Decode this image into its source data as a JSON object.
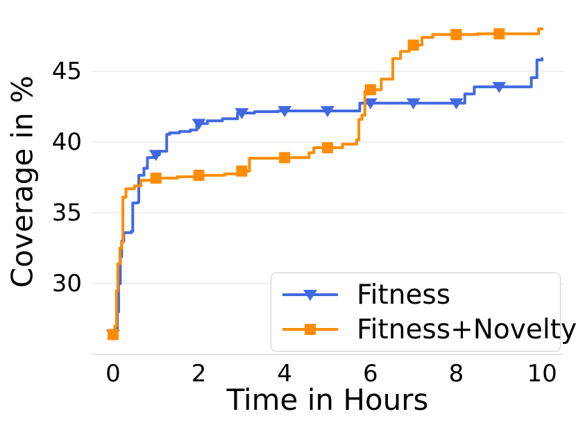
{
  "figure": {
    "background": "#ffffff",
    "grid_color": "#e7e7e7",
    "axis_line_color": "#dddddd",
    "text_color": "#000000"
  },
  "chart_data": {
    "type": "line",
    "title": "",
    "xlabel": "Time in Hours",
    "ylabel": "Coverage in %",
    "xlim": [
      -0.5,
      10.5
    ],
    "ylim": [
      25,
      49.5
    ],
    "xticks": [
      0,
      2,
      4,
      6,
      8,
      10
    ],
    "yticks": [
      30,
      35,
      40,
      45
    ],
    "grid": "horizontal",
    "legend_position": "lower right",
    "series": [
      {
        "name": "Fitness",
        "color": "#4169e1",
        "marker": "triangle-down",
        "line_style": "step-after",
        "marker_x": [
          0,
          1,
          2,
          3,
          4,
          5,
          6,
          7,
          8,
          9
        ],
        "points": [
          [
            0,
            26.4
          ],
          [
            0.05,
            26.8
          ],
          [
            0.1,
            28.0
          ],
          [
            0.13,
            30.0
          ],
          [
            0.17,
            31.9
          ],
          [
            0.2,
            33.0
          ],
          [
            0.25,
            33.6
          ],
          [
            0.43,
            33.7
          ],
          [
            0.46,
            35.7
          ],
          [
            0.58,
            35.75
          ],
          [
            0.6,
            37.65
          ],
          [
            0.72,
            38.15
          ],
          [
            0.8,
            38.9
          ],
          [
            0.95,
            39.1
          ],
          [
            1.08,
            39.35
          ],
          [
            1.25,
            40.55
          ],
          [
            1.32,
            40.65
          ],
          [
            1.55,
            40.75
          ],
          [
            1.8,
            40.85
          ],
          [
            1.95,
            41.3
          ],
          [
            2.2,
            41.5
          ],
          [
            2.55,
            41.65
          ],
          [
            2.9,
            42.05
          ],
          [
            3.3,
            42.15
          ],
          [
            3.85,
            42.2
          ],
          [
            5.75,
            42.75
          ],
          [
            8.2,
            43.4
          ],
          [
            8.42,
            43.9
          ],
          [
            9.75,
            44.55
          ],
          [
            9.88,
            45.8
          ],
          [
            10,
            45.9
          ]
        ]
      },
      {
        "name": "Fitness+Novelty",
        "color": "#ff8c00",
        "marker": "square",
        "line_style": "step-after",
        "marker_x": [
          0,
          1,
          2,
          3,
          4,
          5,
          6,
          7,
          8,
          9
        ],
        "points": [
          [
            0,
            26.4
          ],
          [
            0.04,
            27.0
          ],
          [
            0.08,
            29.5
          ],
          [
            0.11,
            31.4
          ],
          [
            0.16,
            32.5
          ],
          [
            0.2,
            32.9
          ],
          [
            0.23,
            36.1
          ],
          [
            0.3,
            36.7
          ],
          [
            0.5,
            36.9
          ],
          [
            0.65,
            37.3
          ],
          [
            0.95,
            37.45
          ],
          [
            1.5,
            37.55
          ],
          [
            1.95,
            37.65
          ],
          [
            2.6,
            37.75
          ],
          [
            2.95,
            37.95
          ],
          [
            3.18,
            38.85
          ],
          [
            3.9,
            38.9
          ],
          [
            4.57,
            39.25
          ],
          [
            4.68,
            39.6
          ],
          [
            5.35,
            39.85
          ],
          [
            5.68,
            40.15
          ],
          [
            5.73,
            41.6
          ],
          [
            5.8,
            41.9
          ],
          [
            5.87,
            43.6
          ],
          [
            5.95,
            43.7
          ],
          [
            6.25,
            44.45
          ],
          [
            6.52,
            45.9
          ],
          [
            6.7,
            46.4
          ],
          [
            6.9,
            46.85
          ],
          [
            7.2,
            47.4
          ],
          [
            7.45,
            47.6
          ],
          [
            8.5,
            47.65
          ],
          [
            9.85,
            47.65
          ],
          [
            9.92,
            48.0
          ],
          [
            10,
            48.0
          ]
        ]
      }
    ]
  }
}
